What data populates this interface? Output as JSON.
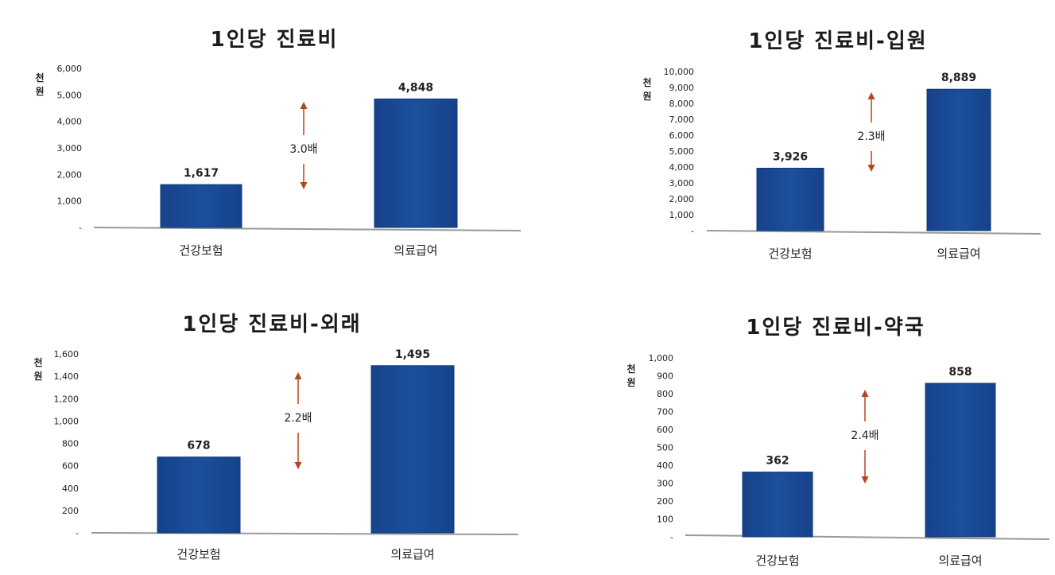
{
  "colors": {
    "bar_fill": "#1b4f9c",
    "bar_stroke": "#123a78",
    "arrow": "#b5451b",
    "baseline": "#999999"
  },
  "chart_data": [
    {
      "type": "bar",
      "title": "1인당 진료비",
      "unit": [
        "천",
        "원"
      ],
      "categories": [
        "건강보험",
        "의료급여"
      ],
      "values": [
        1617,
        4848
      ],
      "value_labels": [
        "1,617",
        "4,848"
      ],
      "yticks": [
        0,
        1000,
        2000,
        3000,
        4000,
        5000,
        6000
      ],
      "ytick_labels": [
        "-",
        "1,000",
        "2,000",
        "3,000",
        "4,000",
        "5,000",
        "6,000"
      ],
      "ylim": [
        0,
        6000
      ],
      "annotation": "3.0배",
      "grid": false,
      "legend": "none"
    },
    {
      "type": "bar",
      "title": "1인당 진료비-입원",
      "unit": [
        "천",
        "원"
      ],
      "categories": [
        "건강보험",
        "의료급여"
      ],
      "values": [
        3926,
        8889
      ],
      "value_labels": [
        "3,926",
        "8,889"
      ],
      "yticks": [
        0,
        1000,
        2000,
        3000,
        4000,
        5000,
        6000,
        7000,
        8000,
        9000,
        10000
      ],
      "ytick_labels": [
        "-",
        "1,000",
        "2,000",
        "3,000",
        "4,000",
        "5,000",
        "6,000",
        "7,000",
        "8,000",
        "9,000",
        "10,000"
      ],
      "ylim": [
        0,
        10000
      ],
      "annotation": "2.3배",
      "grid": false,
      "legend": "none"
    },
    {
      "type": "bar",
      "title": "1인당 진료비-외래",
      "unit": [
        "천",
        "원"
      ],
      "categories": [
        "건강보험",
        "의료급여"
      ],
      "values": [
        678,
        1495
      ],
      "value_labels": [
        "678",
        "1,495"
      ],
      "yticks": [
        0,
        200,
        400,
        600,
        800,
        1000,
        1200,
        1400,
        1600
      ],
      "ytick_labels": [
        "-",
        "200",
        "400",
        "600",
        "800",
        "1,000",
        "1,200",
        "1,400",
        "1,600"
      ],
      "ylim": [
        0,
        1600
      ],
      "annotation": "2.2배",
      "grid": false,
      "legend": "none"
    },
    {
      "type": "bar",
      "title": "1인당 진료비-약국",
      "unit": [
        "천",
        "원"
      ],
      "categories": [
        "건강보험",
        "의료급여"
      ],
      "values": [
        362,
        858
      ],
      "value_labels": [
        "362",
        "858"
      ],
      "yticks": [
        0,
        100,
        200,
        300,
        400,
        500,
        600,
        700,
        800,
        900,
        1000
      ],
      "ytick_labels": [
        "-",
        "100",
        "200",
        "300",
        "400",
        "500",
        "600",
        "700",
        "800",
        "900",
        "1,000"
      ],
      "ylim": [
        0,
        1000
      ],
      "annotation": "2.4배",
      "grid": false,
      "legend": "none"
    }
  ]
}
